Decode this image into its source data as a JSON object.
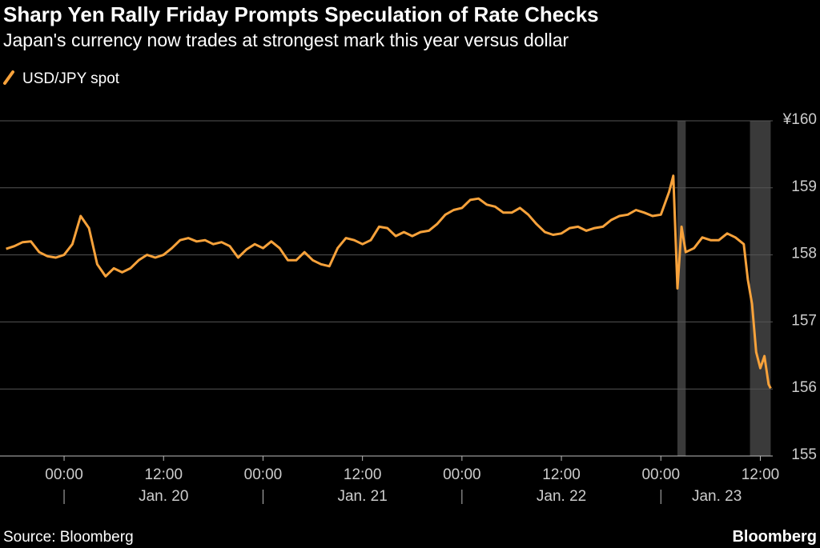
{
  "chart_data": {
    "type": "line",
    "title": "Sharp Yen Rally Friday Prompts Speculation of Rate Checks",
    "subtitle": "Japan's currency now trades at strongest mark this year versus dollar",
    "source": "Source: Bloomberg",
    "brand": "Bloomberg",
    "x": [
      "Jan. 19 17:00",
      "Jan. 19 18:00",
      "Jan. 19 19:00",
      "Jan. 19 20:00",
      "Jan. 19 21:00",
      "Jan. 19 22:00",
      "Jan. 19 23:00",
      "Jan. 20 00:00",
      "Jan. 20 01:00",
      "Jan. 20 02:00",
      "Jan. 20 03:00",
      "Jan. 20 04:00",
      "Jan. 20 05:00",
      "Jan. 20 06:00",
      "Jan. 20 07:00",
      "Jan. 20 08:00",
      "Jan. 20 09:00",
      "Jan. 20 10:00",
      "Jan. 20 11:00",
      "Jan. 20 12:00",
      "Jan. 20 13:00",
      "Jan. 20 14:00",
      "Jan. 20 15:00",
      "Jan. 20 16:00",
      "Jan. 20 17:00",
      "Jan. 20 18:00",
      "Jan. 20 19:00",
      "Jan. 20 20:00",
      "Jan. 20 21:00",
      "Jan. 20 22:00",
      "Jan. 20 23:00",
      "Jan. 21 00:00",
      "Jan. 21 01:00",
      "Jan. 21 02:00",
      "Jan. 21 03:00",
      "Jan. 21 04:00",
      "Jan. 21 05:00",
      "Jan. 21 06:00",
      "Jan. 21 07:00",
      "Jan. 21 08:00",
      "Jan. 21 09:00",
      "Jan. 21 10:00",
      "Jan. 21 11:00",
      "Jan. 21 12:00",
      "Jan. 21 13:00",
      "Jan. 21 14:00",
      "Jan. 21 15:00",
      "Jan. 21 16:00",
      "Jan. 21 17:00",
      "Jan. 21 18:00",
      "Jan. 21 19:00",
      "Jan. 21 20:00",
      "Jan. 21 21:00",
      "Jan. 21 22:00",
      "Jan. 21 23:00",
      "Jan. 22 00:00",
      "Jan. 22 01:00",
      "Jan. 22 02:00",
      "Jan. 22 03:00",
      "Jan. 22 04:00",
      "Jan. 22 05:00",
      "Jan. 22 06:00",
      "Jan. 22 07:00",
      "Jan. 22 08:00",
      "Jan. 22 09:00",
      "Jan. 22 10:00",
      "Jan. 22 11:00",
      "Jan. 22 12:00",
      "Jan. 22 13:00",
      "Jan. 22 14:00",
      "Jan. 22 15:00",
      "Jan. 22 16:00",
      "Jan. 22 17:00",
      "Jan. 22 18:00",
      "Jan. 22 19:00",
      "Jan. 22 20:00",
      "Jan. 22 21:00",
      "Jan. 22 22:00",
      "Jan. 22 23:00",
      "Jan. 23 00:00",
      "Jan. 23 01:00",
      "Jan. 23 01:30",
      "Jan. 23 02:00",
      "Jan. 23 02:30",
      "Jan. 23 03:00",
      "Jan. 23 04:00",
      "Jan. 23 05:00",
      "Jan. 23 06:00",
      "Jan. 23 07:00",
      "Jan. 23 08:00",
      "Jan. 23 09:00",
      "Jan. 23 10:00",
      "Jan. 23 10:30",
      "Jan. 23 11:00",
      "Jan. 23 11:30",
      "Jan. 23 12:00",
      "Jan. 23 12:30",
      "Jan. 23 13:00",
      "Jan. 23 13:15"
    ],
    "series": [
      {
        "name": "USD/JPY spot",
        "color": "#f7a23b",
        "values": [
          158.09,
          158.13,
          158.19,
          158.2,
          158.04,
          157.98,
          157.96,
          158.0,
          158.16,
          158.58,
          158.4,
          157.86,
          157.68,
          157.8,
          157.74,
          157.8,
          157.92,
          158.0,
          157.96,
          158.0,
          158.1,
          158.22,
          158.25,
          158.2,
          158.22,
          158.16,
          158.19,
          158.13,
          157.96,
          158.08,
          158.16,
          158.1,
          158.2,
          158.1,
          157.92,
          157.92,
          158.04,
          157.92,
          157.86,
          157.83,
          158.1,
          158.25,
          158.22,
          158.16,
          158.22,
          158.42,
          158.4,
          158.28,
          158.34,
          158.28,
          158.34,
          158.36,
          158.46,
          158.6,
          158.67,
          158.7,
          158.82,
          158.84,
          158.75,
          158.72,
          158.63,
          158.63,
          158.7,
          158.6,
          158.46,
          158.34,
          158.3,
          158.32,
          158.4,
          158.42,
          158.36,
          158.4,
          158.42,
          158.52,
          158.58,
          158.6,
          158.67,
          158.63,
          158.58,
          158.6,
          158.94,
          159.18,
          157.5,
          158.42,
          158.04,
          158.1,
          158.26,
          158.22,
          158.22,
          158.32,
          158.26,
          158.16,
          157.63,
          157.27,
          156.55,
          156.31,
          156.49,
          156.07,
          156.01
        ]
      }
    ],
    "shaded": [
      [
        "Jan. 23 02:00",
        "Jan. 23 03:00"
      ],
      [
        "Jan. 23 10:45",
        "Jan. 23 13:15"
      ]
    ],
    "xlim": [
      "Jan. 19 16:45",
      "Jan. 23 13:30"
    ],
    "xticks": [
      {
        "value": "Jan. 20 00:00",
        "label": "00:00"
      },
      {
        "value": "Jan. 20 12:00",
        "label": "12:00"
      },
      {
        "value": "Jan. 21 00:00",
        "label": "00:00"
      },
      {
        "value": "Jan. 21 12:00",
        "label": "12:00"
      },
      {
        "value": "Jan. 22 00:00",
        "label": "00:00"
      },
      {
        "value": "Jan. 22 12:00",
        "label": "12:00"
      },
      {
        "value": "Jan. 23 00:00",
        "label": "00:00"
      },
      {
        "value": "Jan. 23 12:00",
        "label": "12:00"
      }
    ],
    "day_labels": [
      "Jan. 20",
      "Jan. 21",
      "Jan. 22",
      "Jan. 23"
    ],
    "ylim": [
      155,
      160
    ],
    "yticks": [
      155,
      156,
      157,
      158,
      159,
      {
        "value": 160,
        "label": "¥160"
      }
    ],
    "grid": true
  }
}
